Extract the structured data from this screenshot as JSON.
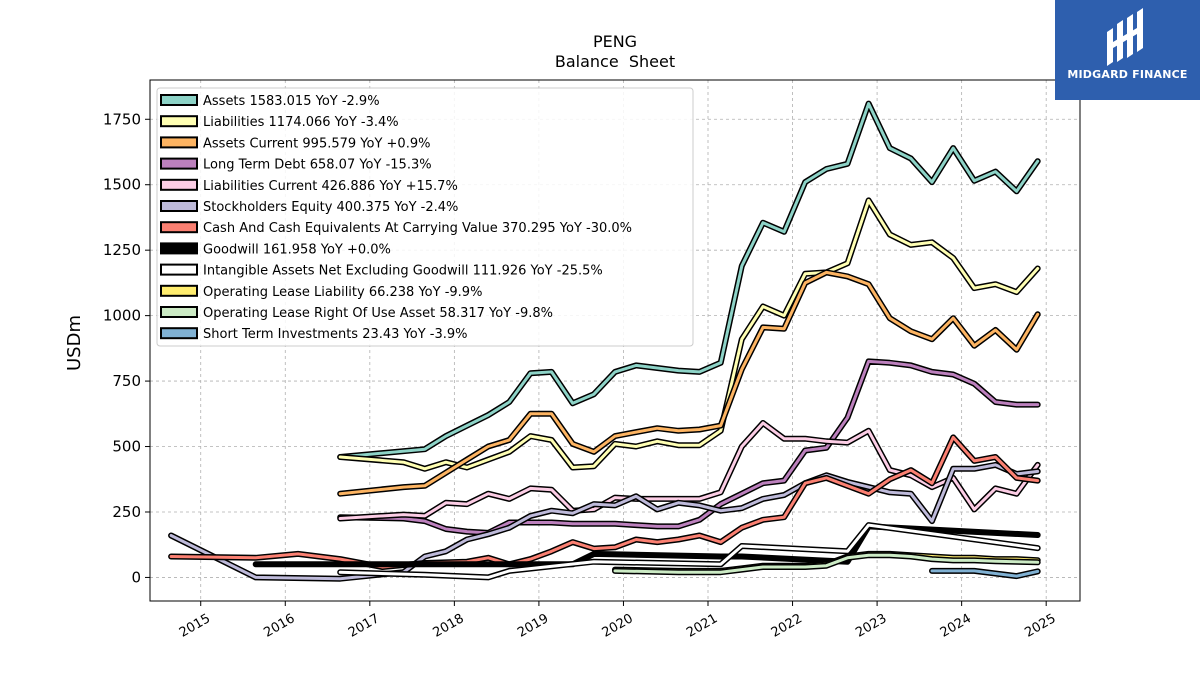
{
  "brand": {
    "name": "MIDGARD FINANCE",
    "color": "#2e5fae"
  },
  "chart_data": {
    "type": "line",
    "title": "PENG",
    "subtitle": "Balance  Sheet",
    "ylabel": "USDm",
    "xlabel": "",
    "xlim": [
      2014.4,
      2025.4
    ],
    "ylim": [
      -90,
      1900
    ],
    "yticks": [
      0,
      250,
      500,
      750,
      1000,
      1250,
      1500,
      1750
    ],
    "yticklabels": [
      "0",
      "250",
      "500",
      "750",
      "1000",
      "1250",
      "1500",
      "1750"
    ],
    "xticks": [
      2015,
      2016,
      2017,
      2018,
      2019,
      2020,
      2021,
      2022,
      2023,
      2024,
      2025
    ],
    "xticklabels": [
      "2015",
      "2016",
      "2017",
      "2018",
      "2019",
      "2020",
      "2021",
      "2022",
      "2023",
      "2024",
      "2025"
    ],
    "grid": true,
    "legend_position": "top-left",
    "series": [
      {
        "name": "Assets  1583.015 YoY -2.9%",
        "color": "#8dd3c7",
        "x": [
          2016.65,
          2017.65,
          2017.9,
          2018.15,
          2018.4,
          2018.65,
          2018.9,
          2019.15,
          2019.4,
          2019.65,
          2019.9,
          2020.15,
          2020.4,
          2020.65,
          2020.9,
          2021.15,
          2021.4,
          2021.65,
          2021.9,
          2022.15,
          2022.4,
          2022.65,
          2022.9,
          2023.15,
          2023.4,
          2023.65,
          2023.9,
          2024.15,
          2024.4,
          2024.65,
          2024.9
        ],
        "y": [
          460,
          490,
          540,
          580,
          620,
          670,
          780,
          785,
          665,
          700,
          785,
          810,
          800,
          790,
          785,
          820,
          1190,
          1355,
          1320,
          1510,
          1560,
          1580,
          1810,
          1640,
          1600,
          1510,
          1640,
          1515,
          1550,
          1475,
          1590
        ]
      },
      {
        "name": "Liabilities  1174.066 YoY -3.4%",
        "color": "#ffffb3",
        "x": [
          2016.65,
          2017.4,
          2017.65,
          2017.9,
          2018.15,
          2018.4,
          2018.65,
          2018.9,
          2019.15,
          2019.4,
          2019.65,
          2019.9,
          2020.15,
          2020.4,
          2020.65,
          2020.9,
          2021.15,
          2021.4,
          2021.65,
          2021.9,
          2022.15,
          2022.4,
          2022.65,
          2022.9,
          2023.15,
          2023.4,
          2023.65,
          2023.9,
          2024.15,
          2024.4,
          2024.65,
          2024.9
        ],
        "y": [
          460,
          440,
          415,
          440,
          420,
          450,
          480,
          540,
          525,
          420,
          425,
          510,
          500,
          520,
          505,
          505,
          560,
          910,
          1035,
          1000,
          1160,
          1165,
          1200,
          1440,
          1310,
          1270,
          1280,
          1220,
          1105,
          1120,
          1090,
          1180
        ]
      },
      {
        "name": "Assets Current  995.579 YoY +0.9%",
        "color": "#fdb462",
        "x": [
          2016.65,
          2017.4,
          2017.65,
          2017.9,
          2018.15,
          2018.4,
          2018.65,
          2018.9,
          2019.15,
          2019.4,
          2019.65,
          2019.9,
          2020.15,
          2020.4,
          2020.65,
          2020.9,
          2021.15,
          2021.4,
          2021.65,
          2021.9,
          2022.15,
          2022.4,
          2022.65,
          2022.9,
          2023.15,
          2023.4,
          2023.65,
          2023.9,
          2024.15,
          2024.4,
          2024.65,
          2024.9
        ],
        "y": [
          320,
          345,
          350,
          400,
          450,
          500,
          525,
          625,
          625,
          510,
          480,
          540,
          555,
          570,
          560,
          565,
          580,
          795,
          955,
          950,
          1125,
          1165,
          1150,
          1120,
          990,
          940,
          910,
          990,
          885,
          945,
          870,
          1005
        ]
      },
      {
        "name": "Long Term Debt  658.07 YoY -15.3%",
        "color": "#bc80bd",
        "x": [
          2016.65,
          2017.4,
          2017.65,
          2017.9,
          2018.15,
          2018.4,
          2018.65,
          2018.9,
          2019.15,
          2019.4,
          2019.65,
          2019.9,
          2020.15,
          2020.4,
          2020.65,
          2020.9,
          2021.15,
          2021.4,
          2021.65,
          2021.9,
          2022.15,
          2022.4,
          2022.65,
          2022.9,
          2023.15,
          2023.4,
          2023.65,
          2023.9,
          2024.15,
          2024.4,
          2024.65,
          2024.9
        ],
        "y": [
          230,
          225,
          215,
          185,
          175,
          170,
          210,
          210,
          210,
          205,
          205,
          205,
          200,
          195,
          195,
          220,
          280,
          320,
          360,
          370,
          485,
          495,
          610,
          825,
          820,
          810,
          785,
          775,
          740,
          670,
          660,
          660
        ]
      },
      {
        "name": "Liabilities Current  426.886 YoY +15.7%",
        "color": "#fccde5",
        "x": [
          2016.65,
          2017.4,
          2017.65,
          2017.9,
          2018.15,
          2018.4,
          2018.65,
          2018.9,
          2019.15,
          2019.4,
          2019.65,
          2019.9,
          2020.15,
          2020.4,
          2020.65,
          2020.9,
          2021.15,
          2021.4,
          2021.65,
          2021.9,
          2022.15,
          2022.4,
          2022.65,
          2022.9,
          2023.15,
          2023.4,
          2023.65,
          2023.9,
          2024.15,
          2024.4,
          2024.65,
          2024.9
        ],
        "y": [
          225,
          240,
          235,
          285,
          280,
          320,
          300,
          340,
          335,
          255,
          260,
          305,
          300,
          300,
          300,
          300,
          325,
          500,
          590,
          530,
          530,
          520,
          515,
          560,
          410,
          390,
          345,
          380,
          260,
          340,
          320,
          430
        ]
      },
      {
        "name": "Stockholders Equity  400.375 YoY -2.4%",
        "color": "#bebada",
        "x": [
          2014.65,
          2015.65,
          2016.65,
          2017.4,
          2017.65,
          2017.9,
          2018.15,
          2018.4,
          2018.65,
          2018.9,
          2019.15,
          2019.4,
          2019.65,
          2019.9,
          2020.15,
          2020.4,
          2020.65,
          2020.9,
          2021.15,
          2021.4,
          2021.65,
          2021.9,
          2022.15,
          2022.4,
          2022.65,
          2022.9,
          2023.15,
          2023.4,
          2023.65,
          2023.9,
          2024.15,
          2024.4,
          2024.65,
          2024.9
        ],
        "y": [
          160,
          0,
          -5,
          20,
          80,
          100,
          145,
          165,
          190,
          235,
          255,
          245,
          280,
          275,
          310,
          260,
          285,
          275,
          255,
          265,
          300,
          315,
          360,
          390,
          365,
          345,
          325,
          320,
          215,
          415,
          415,
          430,
          395,
          405
        ]
      },
      {
        "name": "Cash And Cash Equivalents At Carrying Value  370.295 YoY -30.0%",
        "color": "#fb8072",
        "x": [
          2014.65,
          2015.65,
          2016.15,
          2016.65,
          2017.15,
          2017.65,
          2018.15,
          2018.4,
          2018.65,
          2018.9,
          2019.15,
          2019.4,
          2019.65,
          2019.9,
          2020.15,
          2020.4,
          2020.65,
          2020.9,
          2021.15,
          2021.4,
          2021.65,
          2021.9,
          2022.15,
          2022.4,
          2022.65,
          2022.9,
          2023.15,
          2023.4,
          2023.65,
          2023.9,
          2024.15,
          2024.4,
          2024.65,
          2024.9
        ],
        "y": [
          80,
          75,
          90,
          70,
          40,
          55,
          60,
          75,
          50,
          70,
          100,
          135,
          110,
          115,
          145,
          135,
          145,
          160,
          135,
          190,
          220,
          230,
          360,
          380,
          350,
          320,
          375,
          410,
          360,
          535,
          445,
          460,
          380,
          370
        ]
      },
      {
        "name": "Goodwill  161.958 YoY +0.0%",
        "color": "#000000",
        "x": [
          2015.65,
          2019.4,
          2019.65,
          2021.15,
          2021.4,
          2022.65,
          2022.9,
          2024.9
        ],
        "y": [
          50,
          50,
          90,
          80,
          80,
          60,
          195,
          162
        ]
      },
      {
        "name": "Intangible Assets Net Excluding Goodwill  111.926 YoY -25.5%",
        "color": "#ffffff",
        "x": [
          2016.65,
          2017.65,
          2018.4,
          2018.65,
          2019.65,
          2021.15,
          2021.4,
          2022.65,
          2022.9,
          2024.9
        ],
        "y": [
          20,
          10,
          0,
          25,
          60,
          50,
          120,
          100,
          200,
          112
        ]
      },
      {
        "name": "Operating Lease Liability  66.238 YoY -9.9%",
        "color": "#ffed6f",
        "x": [
          2019.9,
          2020.65,
          2021.15,
          2021.4,
          2021.65,
          2021.9,
          2022.15,
          2022.4,
          2022.65,
          2022.9,
          2023.15,
          2023.4,
          2023.65,
          2023.9,
          2024.15,
          2024.4,
          2024.65,
          2024.9
        ],
        "y": [
          30,
          25,
          25,
          35,
          45,
          45,
          45,
          50,
          80,
          90,
          90,
          85,
          80,
          75,
          75,
          70,
          70,
          66
        ]
      },
      {
        "name": "Operating Lease Right Of Use Asset  58.317 YoY -9.8%",
        "color": "#ccebc5",
        "x": [
          2019.9,
          2020.65,
          2021.15,
          2021.4,
          2021.65,
          2021.9,
          2022.15,
          2022.4,
          2022.65,
          2022.9,
          2023.15,
          2023.4,
          2023.65,
          2023.9,
          2024.15,
          2024.4,
          2024.65,
          2024.9
        ],
        "y": [
          25,
          20,
          20,
          30,
          40,
          40,
          40,
          45,
          75,
          85,
          85,
          80,
          70,
          65,
          65,
          62,
          60,
          58
        ]
      },
      {
        "name": "Short Term Investments  23.43 YoY -3.9%",
        "color": "#80b1d3",
        "x": [
          2023.65,
          2024.15,
          2024.65,
          2024.9
        ],
        "y": [
          25,
          25,
          5,
          23
        ]
      }
    ]
  }
}
